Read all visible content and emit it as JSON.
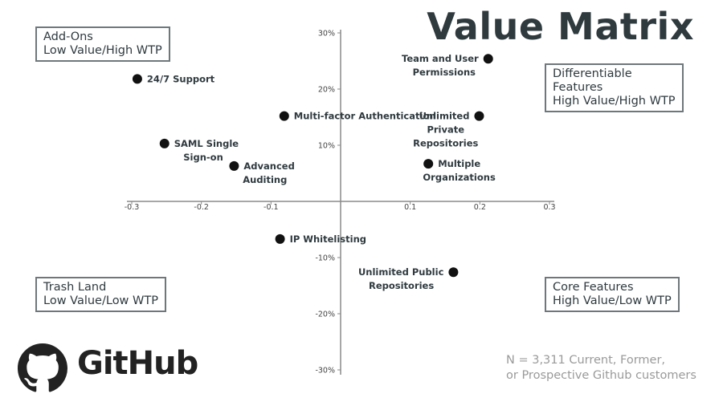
{
  "chart_data": {
    "type": "scatter",
    "title": "Value Matrix",
    "xlim": [
      -0.3,
      0.3
    ],
    "ylim": [
      -30,
      30
    ],
    "x_ticks": [
      "-0.3",
      "-0.2",
      "-0.1",
      "0.1",
      "0.2",
      "0.3"
    ],
    "y_ticks": [
      "30%",
      "20%",
      "10%",
      "-10%",
      "-20%",
      "-30%"
    ],
    "points": [
      {
        "label": [
          "24/7 Support"
        ],
        "x": -0.292,
        "y": 21.8
      },
      {
        "label": [
          "Team and User",
          "Permissions"
        ],
        "x": 0.212,
        "y": 25.4
      },
      {
        "label": [
          "Multi-factor Authentication"
        ],
        "x": -0.081,
        "y": 15.2
      },
      {
        "label": [
          "Unlimited",
          "Private",
          "Repositories"
        ],
        "x": 0.199,
        "y": 15.2
      },
      {
        "label": [
          "SAML Single",
          "Sign-on"
        ],
        "x": -0.253,
        "y": 10.3
      },
      {
        "label": [
          "Advanced",
          "Auditing"
        ],
        "x": -0.153,
        "y": 6.3
      },
      {
        "label": [
          "Multiple",
          "Organizations"
        ],
        "x": 0.126,
        "y": 6.7
      },
      {
        "label": [
          "IP Whitelisting"
        ],
        "x": -0.087,
        "y": -6.7
      },
      {
        "label": [
          "Unlimited Public",
          "Repositories"
        ],
        "x": 0.162,
        "y": -12.6
      }
    ],
    "quadrants": {
      "top_left": [
        "Add-Ons",
        "Low Value/High WTP"
      ],
      "top_right": [
        "Differentiable",
        "Features",
        "High Value/High WTP"
      ],
      "bottom_left": [
        "Trash Land",
        "Low Value/Low WTP"
      ],
      "bottom_right": [
        "Core Features",
        "High Value/Low WTP"
      ]
    }
  },
  "brand": {
    "logo_text": "GitHub",
    "logo_icon": "github-octocat-icon"
  },
  "footnote": [
    "N = 3,311 Current, Former,",
    "or Prospective Github customers"
  ],
  "colors": {
    "text": "#2f3a3f",
    "point": "#111111",
    "axis": "#8a8a8a",
    "footnote": "#9a9a9a"
  }
}
